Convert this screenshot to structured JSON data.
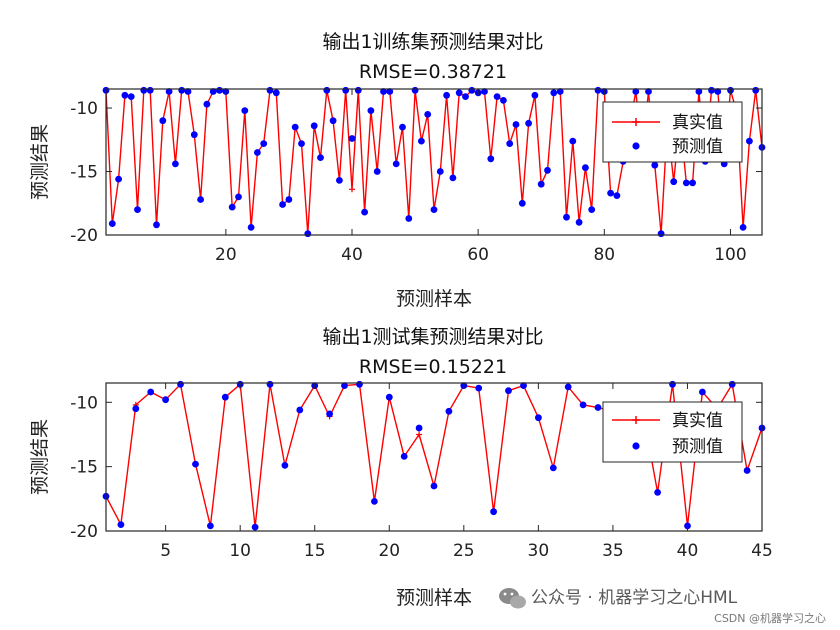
{
  "watermark": {
    "text": "公众号 · 机器学习之心HML",
    "sub": "CSDN @机器学习之心"
  },
  "chart_data": [
    {
      "type": "line",
      "title": "输出1训练集预测结果对比",
      "subtitle": "RMSE=0.38721",
      "xlabel": "预测样本",
      "ylabel": "预测结果",
      "xlim": [
        1,
        105
      ],
      "ylim": [
        -20,
        -8.5
      ],
      "xticks": [
        20,
        40,
        60,
        80,
        100
      ],
      "yticks": [
        -10,
        -15,
        -20
      ],
      "legend": {
        "position": "top-right"
      },
      "series": [
        {
          "name": "真实值",
          "color": "#ff0000",
          "marker": "plus",
          "values": [
            -8.6,
            -19.1,
            -15.6,
            -9.0,
            -9.1,
            -18.0,
            -8.6,
            -8.6,
            -19.2,
            -11.0,
            -8.7,
            -14.4,
            -8.6,
            -8.7,
            -12.1,
            -17.2,
            -9.7,
            -8.7,
            -8.6,
            -8.7,
            -17.8,
            -17.0,
            -10.2,
            -19.4,
            -13.5,
            -12.8,
            -8.6,
            -8.8,
            -17.6,
            -17.2,
            -11.5,
            -12.8,
            -19.9,
            -11.4,
            -13.9,
            -8.6,
            -11.0,
            -15.7,
            -8.6,
            -16.4,
            -8.6,
            -18.2,
            -10.2,
            -15.0,
            -8.7,
            -8.7,
            -14.4,
            -11.5,
            -18.7,
            -8.6,
            -12.6,
            -10.5,
            -18.0,
            -15.0,
            -9.0,
            -15.5,
            -8.8,
            -9.1,
            -8.6,
            -8.8,
            -8.7,
            -14.0,
            -9.1,
            -9.4,
            -12.8,
            -11.3,
            -17.5,
            -11.2,
            -9.0,
            -16.0,
            -14.9,
            -8.8,
            -8.7,
            -18.6,
            -12.6,
            -19.0,
            -14.7,
            -18.0,
            -8.6,
            -8.7,
            -16.7,
            -16.9,
            -14.2,
            -11.5,
            -8.7,
            -13.5,
            -8.7,
            -14.5,
            -19.9,
            -11.2,
            -15.8,
            -10.7,
            -15.9,
            -15.9,
            -8.7,
            -14.2,
            -8.6,
            -8.7,
            -14.4,
            -8.6,
            -10.3,
            -19.4,
            -12.6,
            -8.6,
            -13.1
          ]
        },
        {
          "name": "预测值",
          "color": "#0000ff",
          "marker": "dot",
          "values": [
            -8.6,
            -19.1,
            -15.6,
            -9.0,
            -9.1,
            -18.0,
            -8.6,
            -8.6,
            -19.2,
            -11.0,
            -8.7,
            -14.4,
            -8.6,
            -8.7,
            -12.1,
            -17.2,
            -9.7,
            -8.7,
            -8.6,
            -8.7,
            -17.8,
            -17.0,
            -10.2,
            -19.4,
            -13.5,
            -12.8,
            -8.6,
            -8.8,
            -17.6,
            -17.2,
            -11.5,
            -12.8,
            -19.9,
            -11.4,
            -13.9,
            -8.6,
            -11.0,
            -15.7,
            -8.6,
            -12.4,
            -8.6,
            -18.2,
            -10.2,
            -15.0,
            -8.7,
            -8.7,
            -14.4,
            -11.5,
            -18.7,
            -8.6,
            -12.6,
            -10.5,
            -18.0,
            -15.0,
            -9.0,
            -15.5,
            -8.8,
            -9.1,
            -8.6,
            -8.8,
            -8.7,
            -14.0,
            -9.1,
            -9.4,
            -12.8,
            -11.3,
            -17.5,
            -11.2,
            -9.0,
            -16.0,
            -14.9,
            -8.8,
            -8.7,
            -18.6,
            -12.6,
            -19.0,
            -14.7,
            -18.0,
            -8.6,
            -8.7,
            -16.7,
            -16.9,
            -14.2,
            -11.5,
            -8.7,
            -13.5,
            -8.7,
            -14.5,
            -19.9,
            -11.2,
            -15.8,
            -10.7,
            -15.9,
            -15.9,
            -8.7,
            -14.2,
            -8.6,
            -8.7,
            -14.4,
            -8.6,
            -10.3,
            -19.4,
            -12.6,
            -8.6,
            -13.1
          ]
        }
      ]
    },
    {
      "type": "line",
      "title": "输出1测试集预测结果对比",
      "subtitle": "RMSE=0.15221",
      "xlabel": "预测样本",
      "ylabel": "预测结果",
      "xlim": [
        1,
        45
      ],
      "ylim": [
        -20,
        -8.5
      ],
      "xticks": [
        5,
        10,
        15,
        20,
        25,
        30,
        35,
        40,
        45
      ],
      "yticks": [
        -10,
        -15,
        -20
      ],
      "legend": {
        "position": "top-right"
      },
      "series": [
        {
          "name": "真实值",
          "color": "#ff0000",
          "marker": "plus",
          "values": [
            -17.3,
            -19.5,
            -10.2,
            -9.2,
            -9.8,
            -8.6,
            -14.8,
            -19.6,
            -9.6,
            -8.6,
            -19.7,
            -8.6,
            -14.9,
            -10.6,
            -8.7,
            -11.1,
            -8.7,
            -8.6,
            -17.7,
            -9.6,
            -14.2,
            -12.5,
            -16.5,
            -10.7,
            -8.7,
            -8.9,
            -18.5,
            -9.1,
            -8.7,
            -11.2,
            -15.1,
            -8.8,
            -10.2,
            -10.4,
            -10.7,
            -10.9,
            -10.7,
            -17.0,
            -8.6,
            -19.6,
            -9.2,
            -10.5,
            -8.6,
            -15.3,
            -12.0
          ]
        },
        {
          "name": "预测值",
          "color": "#0000ff",
          "marker": "dot",
          "values": [
            -17.3,
            -19.5,
            -10.5,
            -9.2,
            -9.8,
            -8.6,
            -14.8,
            -19.6,
            -9.6,
            -8.6,
            -19.7,
            -8.6,
            -14.9,
            -10.6,
            -8.7,
            -10.9,
            -8.7,
            -8.6,
            -17.7,
            -9.6,
            -14.2,
            -12.0,
            -16.5,
            -10.7,
            -8.7,
            -8.9,
            -18.5,
            -9.1,
            -8.7,
            -11.2,
            -15.1,
            -8.8,
            -10.2,
            -10.4,
            -10.7,
            -10.9,
            -10.7,
            -17.0,
            -8.6,
            -19.6,
            -9.2,
            -10.5,
            -8.6,
            -15.3,
            -12.0
          ]
        }
      ]
    }
  ]
}
